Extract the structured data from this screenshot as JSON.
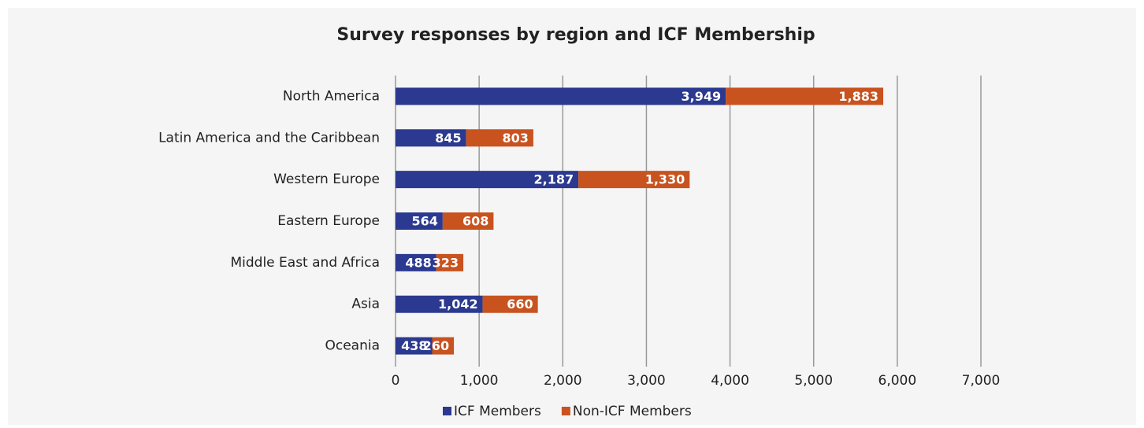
{
  "chart_data": {
    "type": "stacked-bar-horizontal",
    "title": "Survey responses by region and ICF Membership",
    "categories": [
      "North America",
      "Latin America and the Caribbean",
      "Western Europe",
      "Eastern Europe",
      "Middle East and Africa",
      "Asia",
      "Oceania"
    ],
    "series": [
      {
        "name": "ICF Members",
        "color": "#2b3990",
        "values": [
          3949,
          845,
          2187,
          564,
          488,
          1042,
          438
        ],
        "value_labels": [
          "3,949",
          "845",
          "2,187",
          "564",
          "488",
          "1,042",
          "438"
        ]
      },
      {
        "name": "Non-ICF Members",
        "color": "#c8531f",
        "values": [
          1883,
          803,
          1330,
          608,
          323,
          660,
          260
        ],
        "value_labels": [
          "1,883",
          "803",
          "1,330",
          "608",
          "323",
          "660",
          "260"
        ]
      }
    ],
    "xlim": [
      0,
      7000
    ],
    "xticks": [
      0,
      {
        "value": 1000,
        "label": "1,000"
      },
      {
        "value": 2000,
        "label": "2,000"
      },
      {
        "value": 3000,
        "label": "3,000"
      },
      {
        "value": 4000,
        "label": "4,000"
      },
      {
        "value": 5000,
        "label": "5,000"
      },
      {
        "value": 6000,
        "label": "6,000"
      },
      {
        "value": 7000,
        "label": "7,000"
      }
    ],
    "grid": true,
    "legend": "bottom"
  }
}
